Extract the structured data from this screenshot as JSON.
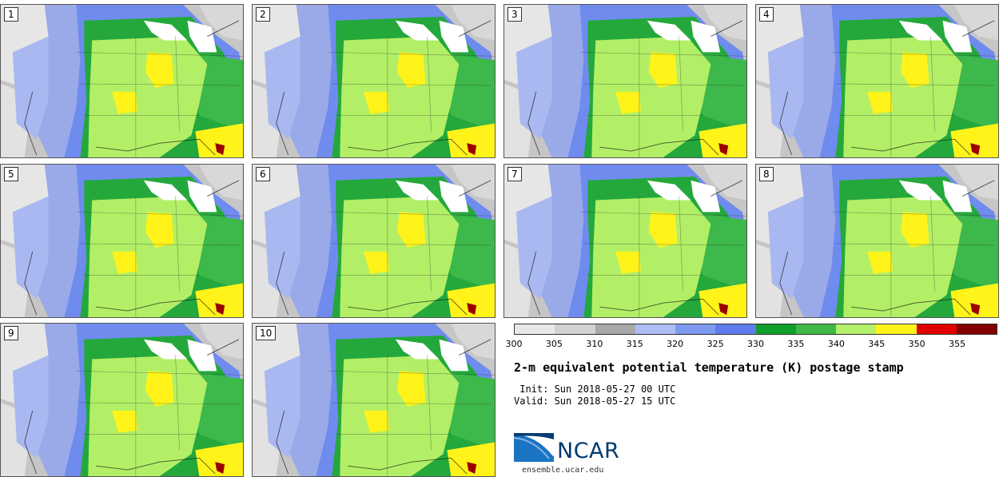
{
  "stamps": [
    {
      "label": "1"
    },
    {
      "label": "2"
    },
    {
      "label": "3"
    },
    {
      "label": "4"
    },
    {
      "label": "5"
    },
    {
      "label": "6"
    },
    {
      "label": "7"
    },
    {
      "label": "8"
    },
    {
      "label": "9"
    },
    {
      "label": "10"
    }
  ],
  "colorbar": {
    "colors": [
      "#e8e8e8",
      "#d2d2d2",
      "#a8a8a8",
      "#aebef4",
      "#7e9af0",
      "#5e7ced",
      "#0f9e2a",
      "#3fb846",
      "#b4f068",
      "#fff31a",
      "#e10000",
      "#820000"
    ],
    "ticks": [
      "300",
      "305",
      "310",
      "315",
      "320",
      "325",
      "330",
      "335",
      "340",
      "345",
      "350",
      "355"
    ]
  },
  "title": "2-m equivalent potential temperature (K) postage stamp",
  "init": " Init: Sun 2018-05-27 00 UTC",
  "valid": "Valid: Sun 2018-05-27 15 UTC",
  "logo": {
    "text": "NCAR",
    "url": "ensemble.ucar.edu"
  }
}
